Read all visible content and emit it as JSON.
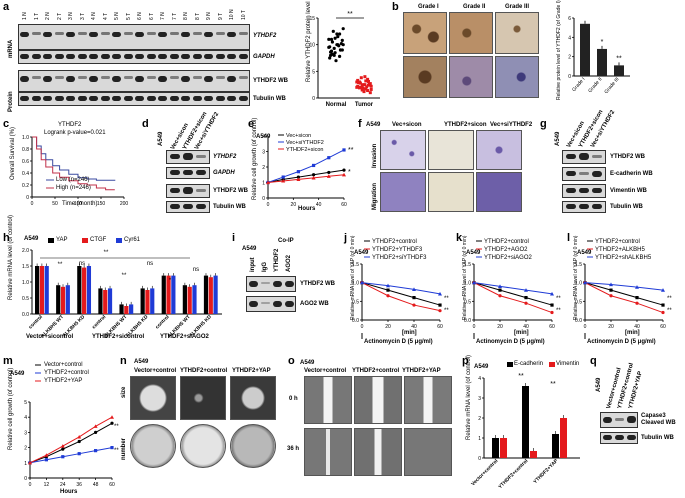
{
  "panels": {
    "a": {
      "letter": "a",
      "lanes": [
        "1 N",
        "1 T",
        "2 N",
        "2 T",
        "3 N",
        "3 T",
        "4 N",
        "4 T",
        "5 N",
        "5 T",
        "6 N",
        "6 T",
        "7 N",
        "7 T",
        "8 N",
        "8 T",
        "9 N",
        "9 T",
        "10 N",
        "10 T"
      ],
      "row_mrna": "mRNA",
      "row_protein": "Protein",
      "blots": [
        "YTHDF2",
        "GAPDH",
        "YTHDF2 WB",
        "Tubulin WB"
      ],
      "chart": {
        "ylabel": "Relative YTHDF2 protein level",
        "yticks": [
          "0",
          "5",
          "10",
          "15"
        ],
        "categories": [
          "Normal",
          "Tumor"
        ],
        "sig": "**"
      }
    },
    "b": {
      "letter": "b",
      "grades": [
        "Grade I",
        "Grade II",
        "Grade III"
      ],
      "chart": {
        "ylabel": "Relative protein level of YTHDF2 (of Grade I)",
        "yticks": [
          "0",
          "2",
          "4",
          "6"
        ],
        "categories": [
          "Grade I",
          "Grade II",
          "Grade III"
        ],
        "sig": [
          "*",
          "**"
        ]
      }
    },
    "c": {
      "letter": "c",
      "title": "YTHDF2",
      "stat": "Logrank p-value=0.021",
      "ylabel": "Overall Survival (%)",
      "xlabel": "Time (month)",
      "yticks": [
        "0",
        "0.2",
        "0.4",
        "0.6",
        "0.8",
        "1.0"
      ],
      "xticks": [
        "0",
        "50",
        "100",
        "150",
        "200"
      ],
      "legend": [
        "Low (n=246)",
        "High (n=246)"
      ]
    },
    "d": {
      "letter": "d",
      "cell": "A549",
      "lanes": [
        "Vec+sicon",
        "YTHDF2+sicon",
        "Vec+siYTHDF2"
      ],
      "blots": [
        "YTHDF2",
        "GAPDH",
        "YTHDF2 WB",
        "Tubulin WB"
      ]
    },
    "e": {
      "letter": "e",
      "cell": "A549",
      "legend": [
        "Vec+sicon",
        "Vec+siYTHDF2",
        "YTHDF2+sicon"
      ],
      "ylabel": "Relative cell growth (of control)",
      "xlabel": "Hours",
      "yticks": [
        "0",
        "1",
        "2",
        "3",
        "4"
      ],
      "xticks": [
        "0",
        "20",
        "40",
        "60"
      ],
      "sig": [
        "**",
        "*"
      ]
    },
    "f": {
      "letter": "f",
      "cell": "A549",
      "cols": [
        "Vec+sicon",
        "YTHDF2+sicon",
        "Vec+siYTHDF2"
      ],
      "rows": [
        "Invasion",
        "Migration"
      ]
    },
    "g": {
      "letter": "g",
      "cell": "A549",
      "lanes": [
        "Vec+sicon",
        "YTHDF2+sicon",
        "Vec+siYTHDF2"
      ],
      "blots": [
        "YTHDF2 WB",
        "E-cadherin WB",
        "Vimentin WB",
        "Tubulin WB"
      ]
    },
    "h": {
      "letter": "h",
      "cell": "A549",
      "legend": [
        "YAP",
        "CTGF",
        "Cyr61"
      ],
      "ylabel": "Relative mRNA level (of control)",
      "yticks": [
        "0.0",
        "0.5",
        "1.0",
        "1.5",
        "2.0"
      ],
      "groups": [
        "control",
        "ALKBH5 WT",
        "ALKBH5 KD"
      ],
      "sets": [
        "Vector+sicontrol",
        "YTHDF2+sicontrol",
        "YTHDF2+siAGO2"
      ],
      "sig": [
        "**",
        "ns",
        "**",
        "**",
        "ns",
        "*",
        "ns"
      ]
    },
    "i": {
      "letter": "i",
      "cell": "A549",
      "header": "Co-IP",
      "lanes": [
        "input",
        "IgG",
        "YTHDF2",
        "AGO2"
      ],
      "blots": [
        "YTHDF2 WB",
        "AGO2 WB"
      ]
    },
    "j": {
      "letter": "j",
      "cell": "A549",
      "legend": [
        "YTHDF2+control",
        "YTHDF2+YTHDF3",
        "YTHDF2+siYTHDF3"
      ],
      "ylabel": "Relative mRNA level of YAP (of 0 min)",
      "xlabel": "[min]",
      "xticks": [
        "0",
        "20",
        "40",
        "60"
      ],
      "yticks": [
        "0.0",
        "0.5",
        "1.0",
        "1.5"
      ],
      "treatment": "Actinomycin D (5 μg/ml)",
      "sig": [
        "**",
        "**"
      ]
    },
    "k": {
      "letter": "k",
      "cell": "A549",
      "legend": [
        "YTHDF2+control",
        "YTHDF2+AGO2",
        "YTHDF2+siAGO2"
      ],
      "ylabel": "Relative mRNA level of YAP (of 0 min)",
      "xlabel": "[min]",
      "xticks": [
        "0",
        "20",
        "40",
        "60"
      ],
      "yticks": [
        "0.0",
        "0.5",
        "1.0",
        "1.5"
      ],
      "treatment": "Actinomycin D (5 μg/ml)",
      "sig": [
        "**",
        "**"
      ]
    },
    "l": {
      "letter": "l",
      "cell": "A549",
      "legend": [
        "YTHDF2+control",
        "YTHDF2+ALKBH5",
        "YTHDF2+shALKBH5"
      ],
      "ylabel": "Relative mRNA level of YAP (of 0 min)",
      "xlabel": "[min]",
      "xticks": [
        "0",
        "20",
        "40",
        "60"
      ],
      "yticks": [
        "0.0",
        "0.5",
        "1.0",
        "1.5"
      ],
      "treatment": "Actinomycin D (5 μg/ml)",
      "sig": [
        "**",
        "**"
      ]
    },
    "m": {
      "letter": "m",
      "cell": "A549",
      "legend": [
        "Vector+control",
        "YTHDF2+control",
        "YTHDF2+YAP"
      ],
      "ylabel": "Relative cell growth (of control)",
      "xlabel": "Hours",
      "xticks": [
        "0",
        "12",
        "24",
        "36",
        "48",
        "60"
      ],
      "yticks": [
        "0",
        "1",
        "2",
        "3",
        "4",
        "5"
      ],
      "sig": [
        "**",
        "**"
      ]
    },
    "n": {
      "letter": "n",
      "cell": "A549",
      "cols": [
        "Vector+control",
        "YTHDF2+control",
        "YTHDF2+YAP"
      ],
      "rows": [
        "size",
        "number"
      ]
    },
    "o": {
      "letter": "o",
      "cell": "A549",
      "cols": [
        "Vector+control",
        "YTHDF2+control",
        "YTHDF2+YAP"
      ],
      "rows": [
        "0 h",
        "36 h"
      ]
    },
    "p": {
      "letter": "p",
      "cell": "A549",
      "legend": [
        "E-cadherin",
        "Vimentin"
      ],
      "ylabel": "Relative mRNA level (of control)",
      "yticks": [
        "0",
        "1",
        "2",
        "3",
        "4"
      ],
      "categories": [
        "Vector+control",
        "YTHDF2+control",
        "YTHDF2+YAP"
      ],
      "sig": [
        "**",
        "**"
      ]
    },
    "q": {
      "letter": "q",
      "cell": "A549",
      "lanes": [
        "Vector+control",
        "YTHDF2+control",
        "YTHDF2+YAP"
      ],
      "blots": [
        "Capase3 Cleaved WB",
        "Tubulin WB"
      ]
    }
  },
  "colors": {
    "black": "#000000",
    "red": "#e41a1c",
    "blue": "#1f3bd6",
    "green": "#3cb44b",
    "gray": "#888888"
  },
  "chart_data": [
    {
      "type": "scatter",
      "panel": "a",
      "categories": [
        "Normal",
        "Tumor"
      ],
      "ylabel": "Relative YTHDF2 protein level",
      "ylim": [
        0,
        15
      ],
      "series": [
        {
          "name": "Normal",
          "values": [
            9.5,
            11,
            8,
            10,
            12,
            9,
            7.5,
            10.5,
            8.5,
            11.5,
            9,
            10,
            8,
            12.5,
            7,
            9.8,
            10.2,
            11,
            8.8,
            9.3,
            12,
            7.8,
            10.8,
            9.6,
            8.2,
            11.2,
            10,
            9,
            13,
            8.6
          ]
        },
        {
          "name": "Tumor",
          "values": [
            2,
            3,
            1.5,
            2.5,
            3.5,
            1,
            2.2,
            2.8,
            1.8,
            3.2,
            2.4,
            1.6,
            2.9,
            3.8,
            1.2,
            2.1,
            2.6,
            3,
            1.9,
            2.3,
            4,
            1.4,
            2.7,
            3.3,
            2,
            2.5,
            1.7,
            3.1,
            2.2,
            2.9
          ]
        }
      ]
    },
    {
      "type": "bar",
      "panel": "b",
      "categories": [
        "Grade I",
        "Grade II",
        "Grade III"
      ],
      "values": [
        5.4,
        2.8,
        1.1
      ],
      "ylim": [
        0,
        6
      ]
    },
    {
      "type": "line",
      "panel": "c",
      "xlim": [
        0,
        200
      ],
      "ylim": [
        0,
        1
      ],
      "series": [
        {
          "name": "Low (n=246)",
          "x": [
            0,
            10,
            20,
            30,
            45,
            60,
            80,
            100,
            120,
            140,
            160,
            180
          ],
          "values": [
            1,
            0.85,
            0.72,
            0.62,
            0.52,
            0.45,
            0.38,
            0.32,
            0.3,
            0.28,
            0.28,
            0.27
          ]
        },
        {
          "name": "High (n=246)",
          "x": [
            0,
            10,
            20,
            30,
            45,
            60,
            80,
            100,
            120,
            140,
            160,
            180
          ],
          "values": [
            1,
            0.8,
            0.62,
            0.5,
            0.4,
            0.33,
            0.27,
            0.22,
            0.2,
            0.15,
            0.12,
            0.12
          ]
        }
      ]
    },
    {
      "type": "line",
      "panel": "e",
      "x": [
        0,
        12,
        24,
        36,
        48,
        60
      ],
      "ylim": [
        0,
        4
      ],
      "series": [
        {
          "name": "Vec+sicon",
          "values": [
            1,
            1.2,
            1.35,
            1.5,
            1.65,
            1.8
          ]
        },
        {
          "name": "Vec+siYTHDF2",
          "values": [
            1,
            1.35,
            1.7,
            2.1,
            2.6,
            3.1
          ]
        },
        {
          "name": "YTHDF2+sicon",
          "values": [
            1,
            1.1,
            1.2,
            1.3,
            1.4,
            1.5
          ]
        }
      ]
    },
    {
      "type": "bar",
      "panel": "h",
      "categories": [
        "Vector+sicontrol control",
        "Vector+sicontrol ALKBH5 WT",
        "Vector+sicontrol ALKBH5 KD",
        "YTHDF2+sicontrol control",
        "YTHDF2+sicontrol ALKBH5 WT",
        "YTHDF2+sicontrol ALKBH5 KD",
        "YTHDF2+siAGO2 control",
        "YTHDF2+siAGO2 ALKBH5 WT",
        "YTHDF2+siAGO2 ALKBH5 KD"
      ],
      "ylim": [
        0,
        2
      ],
      "series": [
        {
          "name": "YAP",
          "values": [
            1.5,
            0.9,
            1.5,
            0.8,
            0.3,
            0.8,
            1.2,
            0.9,
            1.2
          ]
        },
        {
          "name": "CTGF",
          "values": [
            1.5,
            0.85,
            1.45,
            0.75,
            0.25,
            0.75,
            1.2,
            0.85,
            1.15
          ]
        },
        {
          "name": "Cyr61",
          "values": [
            1.5,
            0.9,
            1.5,
            0.8,
            0.3,
            0.8,
            1.2,
            0.9,
            1.2
          ]
        }
      ]
    },
    {
      "type": "line",
      "panel": "j",
      "x": [
        0,
        20,
        40,
        60
      ],
      "ylim": [
        0,
        1.5
      ],
      "series": [
        {
          "name": "YTHDF2+control",
          "values": [
            1,
            0.8,
            0.6,
            0.4
          ]
        },
        {
          "name": "YTHDF2+YTHDF3",
          "values": [
            1,
            0.65,
            0.4,
            0.25
          ]
        },
        {
          "name": "YTHDF2+siYTHDF3",
          "values": [
            1,
            0.92,
            0.82,
            0.7
          ]
        }
      ]
    },
    {
      "type": "line",
      "panel": "k",
      "x": [
        0,
        20,
        40,
        60
      ],
      "ylim": [
        0,
        1.5
      ],
      "series": [
        {
          "name": "YTHDF2+control",
          "values": [
            1,
            0.8,
            0.6,
            0.4
          ]
        },
        {
          "name": "YTHDF2+AGO2",
          "values": [
            1,
            0.65,
            0.45,
            0.2
          ]
        },
        {
          "name": "YTHDF2+siAGO2",
          "values": [
            1,
            0.9,
            0.8,
            0.7
          ]
        }
      ]
    },
    {
      "type": "line",
      "panel": "l",
      "x": [
        0,
        20,
        40,
        60
      ],
      "ylim": [
        0,
        1.5
      ],
      "series": [
        {
          "name": "YTHDF2+control",
          "values": [
            1,
            0.8,
            0.6,
            0.4
          ]
        },
        {
          "name": "YTHDF2+ALKBH5",
          "values": [
            1,
            0.65,
            0.45,
            0.2
          ]
        },
        {
          "name": "YTHDF2+shALKBH5",
          "values": [
            1,
            0.95,
            0.88,
            0.8
          ]
        }
      ]
    },
    {
      "type": "line",
      "panel": "m",
      "x": [
        0,
        12,
        24,
        36,
        48,
        60
      ],
      "ylim": [
        0,
        5
      ],
      "series": [
        {
          "name": "Vector+control",
          "values": [
            1,
            1.4,
            1.9,
            2.4,
            3,
            3.6
          ]
        },
        {
          "name": "YTHDF2+control",
          "values": [
            1,
            1.2,
            1.4,
            1.6,
            1.8,
            2
          ]
        },
        {
          "name": "YTHDF2+YAP",
          "values": [
            1,
            1.5,
            2.1,
            2.7,
            3.4,
            4
          ]
        }
      ]
    },
    {
      "type": "bar",
      "panel": "p",
      "categories": [
        "Vector+control",
        "YTHDF2+control",
        "YTHDF2+YAP"
      ],
      "ylim": [
        0,
        4
      ],
      "series": [
        {
          "name": "E-cadherin",
          "values": [
            1,
            3.6,
            1.2
          ]
        },
        {
          "name": "Vimentin",
          "values": [
            1,
            0.35,
            2
          ]
        }
      ]
    }
  ]
}
